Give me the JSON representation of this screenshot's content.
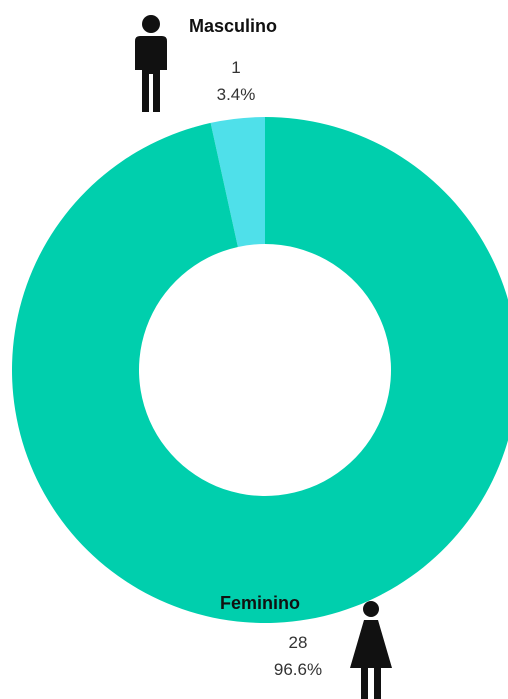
{
  "chart_data": {
    "type": "pie",
    "variant": "donut",
    "categories": [
      "Masculino",
      "Feminino"
    ],
    "values": [
      1,
      28
    ],
    "percent_labels": [
      "3.4%",
      "96.6%"
    ],
    "colors": [
      "#4fe0ea",
      "#00cfad"
    ],
    "icons": [
      "male-person-icon",
      "female-person-icon"
    ],
    "legend": "none"
  }
}
